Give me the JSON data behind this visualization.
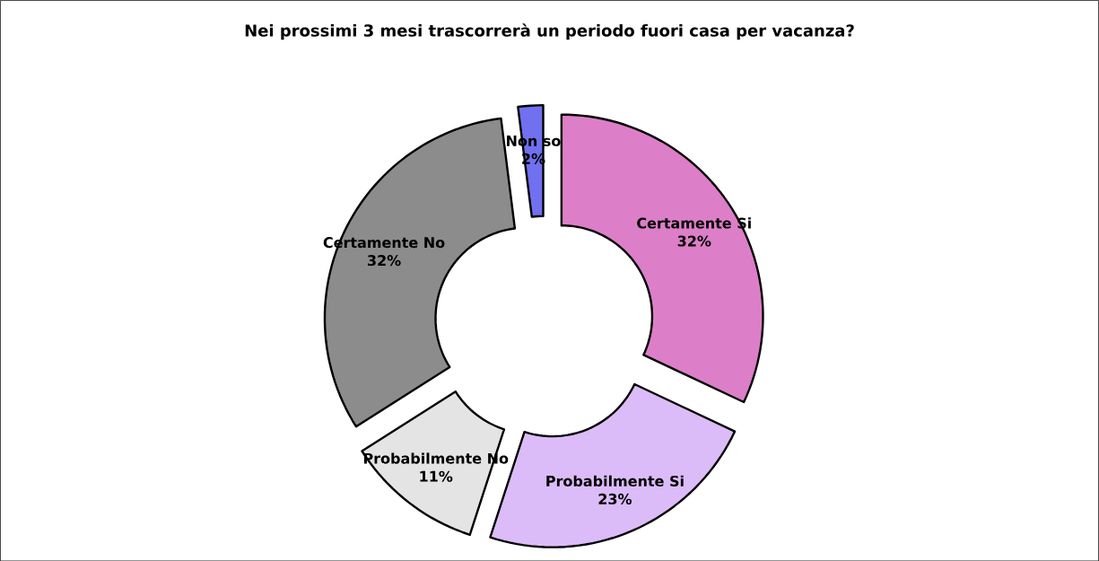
{
  "chart_data": {
    "type": "donut",
    "title": "Nei prossimi 3 mesi trascorrerà un periodo fuori casa per vacanza?",
    "categories": [
      "Certamente Si",
      "Probabilmente Si",
      "Probabilmente No",
      "Certamente No",
      "Non so"
    ],
    "values": [
      32,
      23,
      11,
      32,
      2
    ],
    "colors": [
      "#dc7fc8",
      "#dcbcf8",
      "#e4e4e4",
      "#8c8c8c",
      "#7070f0"
    ],
    "value_labels": [
      "32%",
      "23%",
      "11%",
      "32%",
      "2%"
    ]
  }
}
